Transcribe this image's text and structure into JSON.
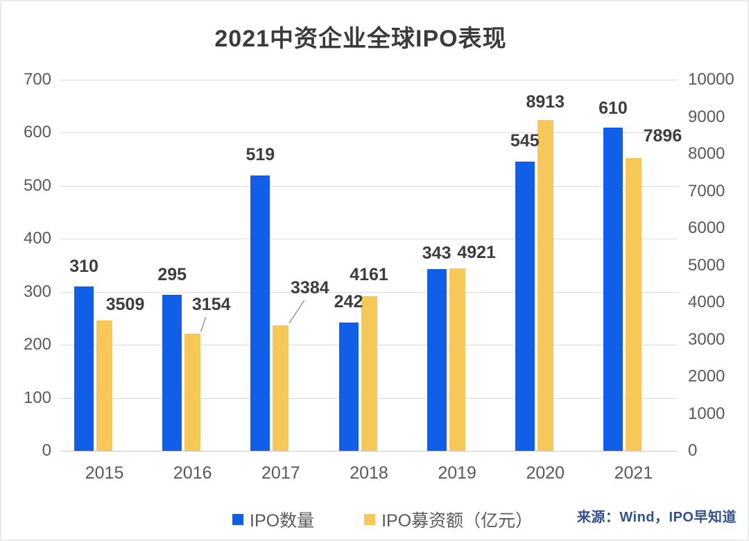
{
  "title": "2021中资企业全球IPO表现",
  "source": "来源：Wind，IPO早知道",
  "legend": [
    {
      "label": "IPO数量",
      "color": "#115fe8"
    },
    {
      "label": "IPO募资额（亿元）",
      "color": "#f6c858"
    }
  ],
  "colors": {
    "bar_blue": "#115fe8",
    "bar_yellow": "#f6c858",
    "gridline": "#dadada",
    "baseline": "#c6c6c6",
    "axis_text": "#595959",
    "value_text": "#3d3d3d",
    "title_text": "#3b3b3b",
    "source_text": "#33518f",
    "leader_line": "#999999"
  },
  "chart_data": {
    "type": "bar",
    "title": "2021中资企业全球IPO表现",
    "categories": [
      "2015",
      "2016",
      "2017",
      "2018",
      "2019",
      "2020",
      "2021"
    ],
    "series": [
      {
        "name": "IPO数量",
        "axis": "left",
        "color": "#115fe8",
        "values": [
          310,
          295,
          519,
          242,
          343,
          545,
          610
        ]
      },
      {
        "name": "IPO募资额（亿元）",
        "axis": "right",
        "color": "#f6c858",
        "values": [
          3509,
          3154,
          3384,
          4161,
          4921,
          8913,
          7896
        ]
      }
    ],
    "left_axis": {
      "min": 0,
      "max": 700,
      "step": 100,
      "ticks": [
        0,
        100,
        200,
        300,
        400,
        500,
        600,
        700
      ]
    },
    "right_axis": {
      "min": 0,
      "max": 10000,
      "step": 1000,
      "ticks": [
        0,
        1000,
        2000,
        3000,
        4000,
        5000,
        6000,
        7000,
        8000,
        9000,
        10000
      ]
    },
    "grid": true,
    "data_labels": true,
    "legend_position": "bottom",
    "xlabel": "",
    "ylabel": ""
  }
}
